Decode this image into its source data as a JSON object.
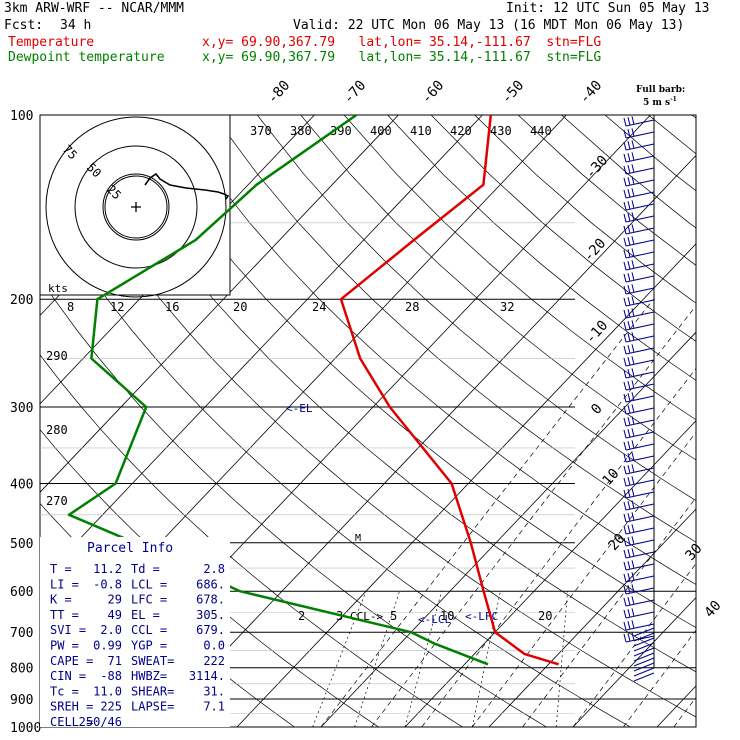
{
  "header": {
    "model": "3km ARW-WRF -- NCAR/MMM",
    "init": "Init: 12 UTC Sun 05 May 13",
    "fcst_label": "Fcst:",
    "fcst_value": "34 h",
    "valid": "Valid: 22 UTC Mon 06 May 13 (16 MDT Mon 06 May 13)",
    "temp_label": "Temperature",
    "temp_info": "x,y= 69.90,367.79   lat,lon= 35.14,-111.67  stn=FLG",
    "dew_label": "Dewpoint temperature",
    "dew_info": "x,y= 69.90,367.79   lat,lon= 35.14,-111.67  stn=FLG",
    "barb_title_1": "Full barb:",
    "barb_title_2": "5 m s",
    "barb_title_sup": "-1"
  },
  "colors": {
    "temperature": "#e00000",
    "dewpoint": "#008000",
    "wind": "#00008b",
    "grid": "#000000"
  },
  "axes": {
    "pressure_labels": [
      "100",
      "200",
      "300",
      "400",
      "500",
      "600",
      "700",
      "800",
      "900",
      "1000"
    ],
    "pressure_levels": [
      100,
      200,
      300,
      400,
      500,
      600,
      700,
      800,
      900,
      1000
    ],
    "skew_temp_labels": [
      "-80",
      "-70",
      "-60",
      "-50",
      "-40",
      "-30",
      "-20",
      "-10",
      "0",
      "10",
      "20",
      "30",
      "40"
    ],
    "theta_labels": [
      "370",
      "380",
      "390",
      "400",
      "410",
      "420",
      "430",
      "440"
    ],
    "low_theta_labels": [
      "290",
      "280",
      "270"
    ],
    "mixing_labels": [
      "2",
      "3",
      "5",
      "10",
      "20"
    ]
  },
  "hodograph": {
    "rings": [
      "75",
      "50",
      "25"
    ],
    "unit": "kts",
    "speed_labels": [
      "8",
      "12",
      "16",
      "20",
      "24",
      "28",
      "32"
    ]
  },
  "annotations": {
    "el": "<-EL",
    "ccl": "CCL->",
    "lcl": "<-LCL",
    "lfc": "<-LFC",
    "freezing": "M"
  },
  "parcel_info": {
    "title": "Parcel Info",
    "rows": [
      [
        "T  =",
        "11.2",
        "Td =",
        "2.8"
      ],
      [
        "LI =",
        "-0.8",
        "LCL =",
        "686."
      ],
      [
        "K  =",
        "29",
        "LFC =",
        "678."
      ],
      [
        "TT =",
        "49",
        "EL  =",
        "305."
      ],
      [
        "SVI =",
        "2.0",
        "CCL =",
        "679."
      ],
      [
        "PW =",
        "0.99",
        "YGP =",
        "0.0"
      ],
      [
        "CAPE =",
        "71",
        "SWEAT=",
        "222"
      ],
      [
        "CIN  =",
        "-88",
        "HWBZ=",
        "3114."
      ],
      [
        "Tc =",
        "11.0",
        "SHEAR=",
        "31."
      ],
      [
        "SREH =",
        "225",
        "LAPSE=",
        "7.1"
      ],
      [
        "CELL =",
        "250/46",
        "",
        ""
      ]
    ]
  },
  "chart_data": {
    "type": "line",
    "x_units": "deg C",
    "y_units": "hPa",
    "ylim": [
      1000,
      100
    ],
    "y_scale": "log",
    "series": [
      {
        "name": "Temperature",
        "points": [
          [
            100,
            -59
          ],
          [
            130,
            -52
          ],
          [
            160,
            -54
          ],
          [
            200,
            -56
          ],
          [
            250,
            -47
          ],
          [
            300,
            -38
          ],
          [
            400,
            -22
          ],
          [
            500,
            -13
          ],
          [
            600,
            -6
          ],
          [
            700,
            0
          ],
          [
            760,
            6
          ],
          [
            790,
            11.2
          ]
        ]
      },
      {
        "name": "Dewpoint temperature",
        "points": [
          [
            100,
            -75
          ],
          [
            130,
            -79
          ],
          [
            160,
            -80
          ],
          [
            200,
            -85
          ],
          [
            250,
            -79
          ],
          [
            300,
            -67
          ],
          [
            400,
            -62
          ],
          [
            450,
            -64
          ],
          [
            500,
            -53
          ],
          [
            600,
            -35
          ],
          [
            700,
            -10
          ],
          [
            730,
            -6
          ],
          [
            790,
            2.8
          ]
        ]
      }
    ]
  }
}
